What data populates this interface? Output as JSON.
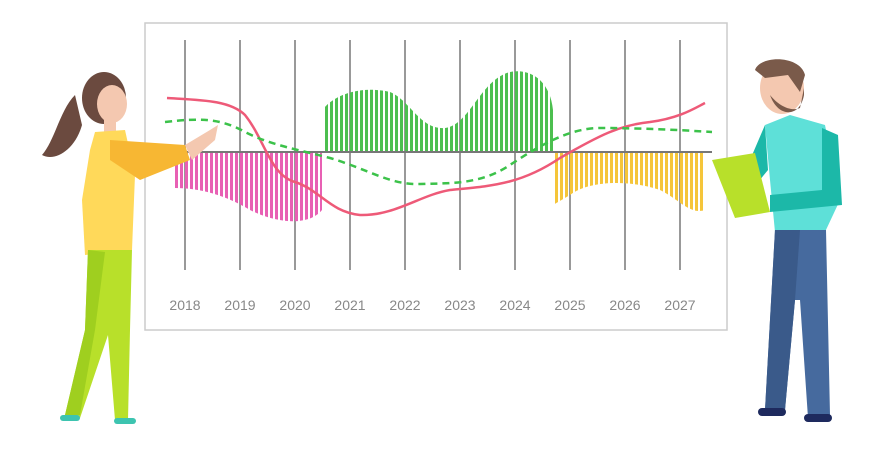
{
  "axis_labels": [
    "2018",
    "2019",
    "2020",
    "2021",
    "2022",
    "2023",
    "2024",
    "2025",
    "2026",
    "2027"
  ]
}
